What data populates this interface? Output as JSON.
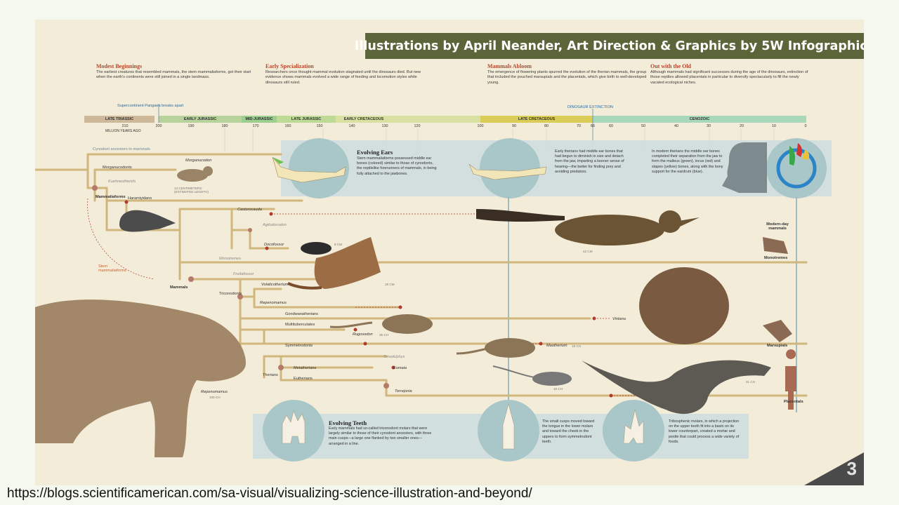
{
  "credit": "Illustrations by April Neander, Art Direction & Graphics by 5W Infographics",
  "headers": [
    {
      "title": "Modest Beginnings",
      "text": "The earliest creatures that resembled mammals, the stem mammaliaforms, got their start when the earth's continents were still joined in a single landmass."
    },
    {
      "title": "Early Specialization",
      "text": "Researchers once thought mammal evolution stagnated until the dinosaurs died. But new evidence shows mammals evolved a wide range of feeding and locomotion styles while dinosaurs still ruled."
    },
    {
      "title": "Mammals Abloom",
      "text": "The emergence of flowering plants spurred the evolution of the therian mammals, the group that included the pouched marsupials and the placentals, which give birth to well-developed young."
    },
    {
      "title": "Out with the Old",
      "text": "Although mammals had significant successes during the age of the dinosaurs, extinction of those reptiles allowed placentals in particular to diversify spectacularly to fill the newly vacated ecological niches."
    }
  ],
  "timeline": {
    "pangaea": "Supercontinent Pangaea breaks apart",
    "extinction": "DINOSAUR EXTINCTION",
    "mya_label": "MILLION YEARS AGO",
    "eras": [
      {
        "name": "LATE TRIASSIC",
        "color": "#cdb89a"
      },
      {
        "name": "EARLY JURASSIC",
        "color": "#b7d39b"
      },
      {
        "name": "MID-JURASSIC",
        "color": "#9ccf8f"
      },
      {
        "name": "LATE JURASSIC",
        "color": "#bddb96"
      },
      {
        "name": "EARLY CRETACEOUS",
        "color": "#d8e1a2"
      },
      {
        "name": "LATE CRETACEOUS",
        "color": "#d9cd58"
      },
      {
        "name": "CENOZOIC",
        "color": "#a9d7ba"
      }
    ],
    "ticks": [
      "210",
      "200",
      "190",
      "180",
      "170",
      "160",
      "150",
      "140",
      "130",
      "120",
      "100",
      "90",
      "80",
      "70",
      "66",
      "60",
      "50",
      "40",
      "30",
      "20",
      "10",
      "0"
    ]
  },
  "tree": {
    "cynodont": "Cynodont ancestors to mammals",
    "morganucodonts": "Morganucodonts",
    "morganucodon": "Morganucodon",
    "morganucodon_size": "14 CENTIMETERS (ESTIMATED LENGTH)",
    "kuehneotherids": "Kuehneotherids",
    "mammaliaforms": "Mammaliaforms",
    "haramiyidans": "Haramiyidans",
    "castorocauda": "Castorocauda",
    "agilodocodon": "Agilodocodon",
    "docofossor": "Docofossor",
    "docofossor_size": "8 CM",
    "castorocauda_size": "42 CM",
    "stem": "Stem mammaliaforms",
    "monotremes": "Monotremes",
    "fruitafossor": "Fruitafossor",
    "mammals": "Mammals",
    "volaticotherium": "Volaticotherium",
    "volaticotherium_size": "28 CM",
    "triconodonts": "Triconodonts",
    "repenomamus": "Repenomamus",
    "gondwanatherians": "Gondwanatherians",
    "vintana": "Vintana",
    "multituberculates": "Multituberculates",
    "rugosodon": "Rugosodon",
    "rugosodon_size": "35 CH",
    "symmetrodonts": "Symmetrodonts",
    "maotherium": "Maotherium",
    "maotherium_size": "18 CH",
    "sinodelphys": "Sinodelphys",
    "eomaia": "Eomaia",
    "eomaia_size": "10 CH",
    "metatherians": "Metatherians",
    "therians": "Therians",
    "eutherians": "Eutherians",
    "torrejonia": "Torrejonia",
    "torrejonia_size": "31 CH",
    "repenomamus_big": "Repenomamus",
    "repenomamus_big_size": "105 CH"
  },
  "modern": {
    "title": "Modern-day mammals",
    "monotremes": "Monotremes",
    "marsupials": "Marsupials",
    "placentals": "Placentals"
  },
  "ears": {
    "title": "Evolving Ears",
    "text1": "Stem mammaliaforms possessed middle ear bones (colored) similar to those of cynodonts, the reptilelike forerunners of mammals, in being fully attached to the jawbones.",
    "text2": "Early therians had middle ear bones that had begun to diminish in size and detach from the jaw, imparting a keener sense of hearing—the better for finding prey and avoiding predators.",
    "text3": "In modern therians the middle ear bones completed their separation from the jaw to form the malleus (green), incus (red) and stapes (yellow) bones, along with the bony support for the eardrum (blue)."
  },
  "teeth": {
    "title": "Evolving Teeth",
    "text1": "Early mammals had so-called triconodont molars that were largely similar to those of their cynodont ancestors, with three main cusps—a large one flanked by two smaller ones—arranged in a line.",
    "text2": "The small cusps moved toward the tongue in the lower molars and toward the cheek in the uppers to form symmetrodont teeth.",
    "text3": "Tribosphenic molars, in which a projection on the upper tooth fit into a basin on its lower counterpart, created a mortar and pestle that could process a wide variety of foods."
  },
  "page_number": "3",
  "url": "https://blogs.scientificamerican.com/sa-visual/visualizing-science-illustration-and-beyond/"
}
